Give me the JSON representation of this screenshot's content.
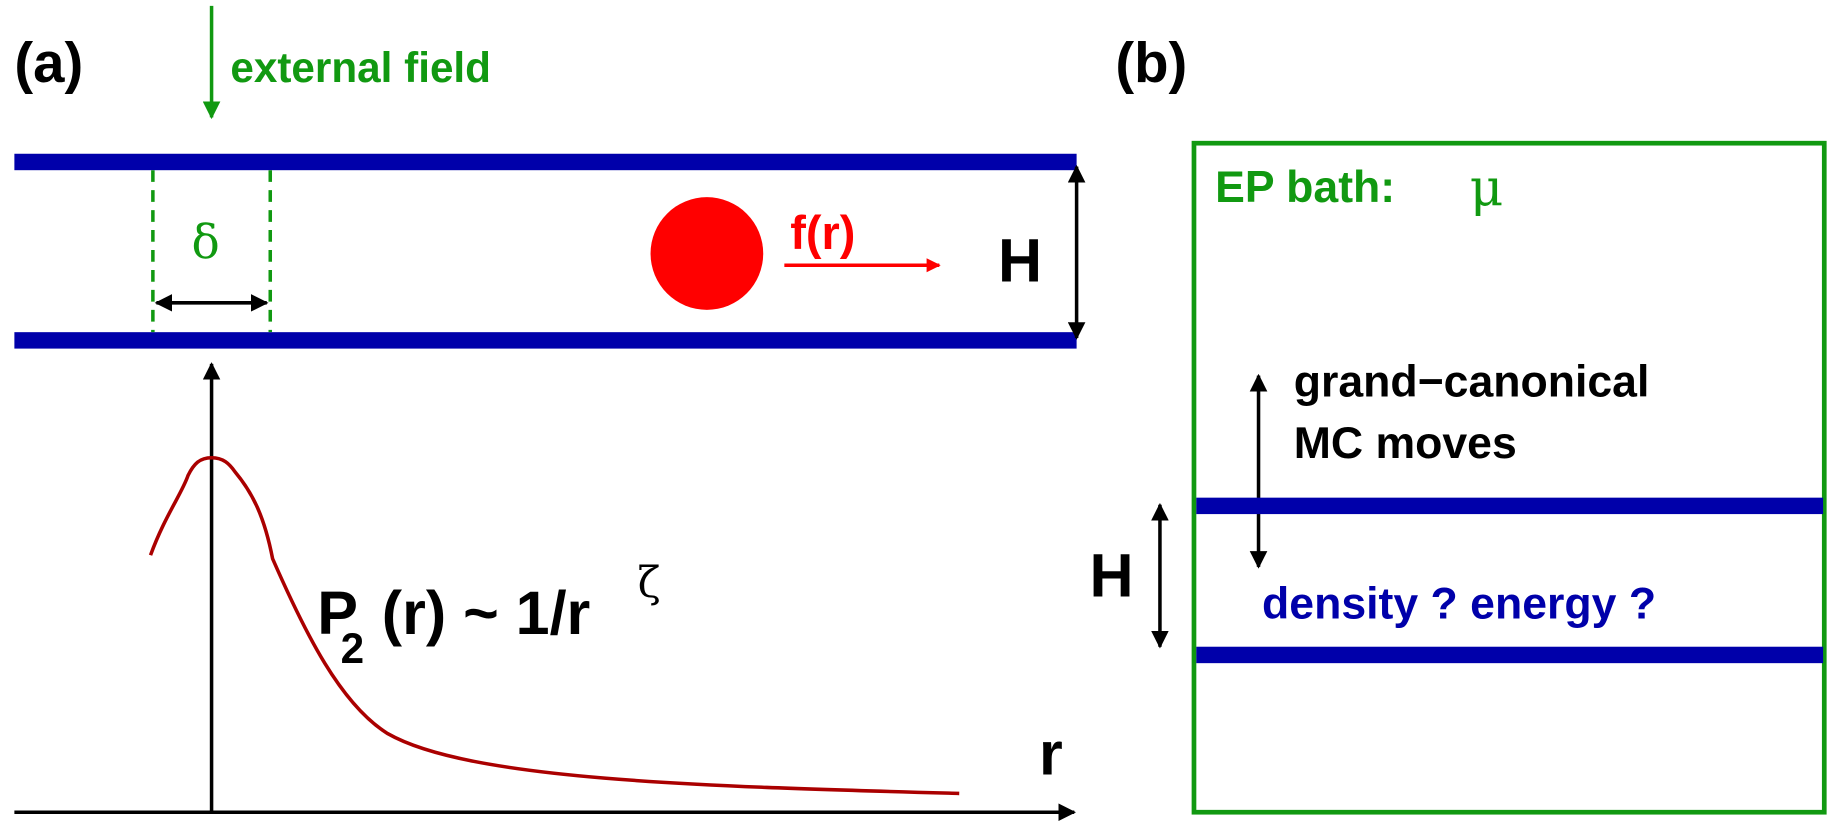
{
  "panel_a": {
    "label": "(a)",
    "external_field": "external field",
    "delta": "δ",
    "force": "f(r)",
    "height": "H",
    "formula": {
      "symbol": "P",
      "subscript": "2",
      "rest": "(r) ~ 1/r",
      "exponent": "ζ"
    },
    "axis_label": "r"
  },
  "panel_b": {
    "label": "(b)",
    "bath": "EP bath:",
    "mu": "μ",
    "moves_line1": "grand−canonical",
    "moves_line2": "MC moves",
    "height": "H",
    "question": "density ? energy ?"
  }
}
